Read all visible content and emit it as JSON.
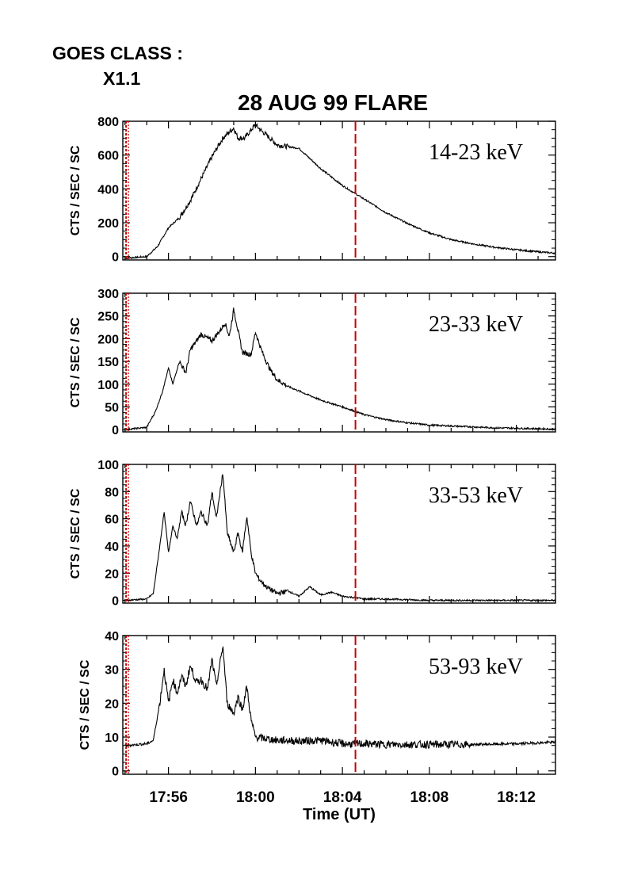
{
  "header": {
    "goes_label": "GOES CLASS :",
    "goes_class": "X1.1",
    "title": "28 AUG 99 FLARE"
  },
  "colors": {
    "axis": "#000000",
    "curve": "#000000",
    "marker": "#cc0000"
  },
  "chart_data": {
    "type": "line",
    "title": "28 AUG 99 FLARE",
    "xlabel": "Time (UT)",
    "x_ticks": [
      "17:56",
      "18:00",
      "18:04",
      "18:08",
      "18:12"
    ],
    "x_range_min": [
      -6.1,
      13.8
    ],
    "x_tick_positions_min": [
      -4,
      0,
      4,
      8,
      12
    ],
    "markers_min": [
      -5.95,
      4.6
    ],
    "panels": [
      {
        "name": "14-23 keV",
        "ylabel": "CTS / SEC / SC",
        "yticks": [
          0,
          200,
          400,
          600,
          800
        ],
        "ylim": [
          -20,
          800
        ],
        "x_min": [
          -6,
          -5,
          -4.5,
          -4,
          -3.5,
          -3,
          -2.5,
          -2,
          -1.5,
          -1,
          -0.8,
          -0.5,
          0,
          0.3,
          0.5,
          1,
          1.5,
          2,
          2.5,
          3,
          3.5,
          4,
          4.5,
          5,
          6,
          7,
          8,
          9,
          10,
          11,
          12,
          13,
          13.8
        ],
        "values": [
          -10,
          0,
          60,
          170,
          230,
          330,
          460,
          590,
          700,
          760,
          700,
          700,
          780,
          740,
          720,
          660,
          650,
          640,
          580,
          520,
          470,
          420,
          380,
          340,
          260,
          195,
          140,
          100,
          75,
          55,
          40,
          28,
          20
        ]
      },
      {
        "name": "23-33 keV",
        "ylabel": "CTS / SEC / SC",
        "yticks": [
          0,
          50,
          100,
          150,
          200,
          250,
          300
        ],
        "ylim": [
          -5,
          300
        ],
        "x_min": [
          -6,
          -5,
          -4.6,
          -4.3,
          -4,
          -3.8,
          -3.5,
          -3.2,
          -3,
          -2.5,
          -2,
          -1.6,
          -1.4,
          -1.2,
          -1,
          -0.6,
          -0.2,
          0,
          0.2,
          0.4,
          0.7,
          1,
          1.5,
          2,
          2.5,
          3,
          4,
          4.6,
          5,
          6,
          7,
          8,
          9,
          10,
          11,
          12,
          13,
          13.8
        ],
        "values": [
          0,
          5,
          40,
          80,
          135,
          100,
          150,
          125,
          175,
          210,
          195,
          220,
          235,
          205,
          265,
          170,
          165,
          215,
          185,
          160,
          130,
          110,
          95,
          85,
          75,
          65,
          50,
          40,
          33,
          22,
          15,
          10,
          8,
          6,
          4,
          3,
          2,
          1
        ]
      },
      {
        "name": "33-53 keV",
        "ylabel": "CTS / SEC / SC",
        "yticks": [
          0,
          20,
          40,
          60,
          80,
          100
        ],
        "ylim": [
          -2,
          100
        ],
        "x_min": [
          -6,
          -5,
          -4.7,
          -4.4,
          -4.2,
          -4,
          -3.8,
          -3.6,
          -3.4,
          -3.2,
          -3,
          -2.7,
          -2.5,
          -2.2,
          -2,
          -1.8,
          -1.5,
          -1.3,
          -1,
          -0.8,
          -0.6,
          -0.4,
          -0.2,
          0,
          0.2,
          0.5,
          1,
          1.5,
          2,
          2.5,
          3,
          3.5,
          4,
          4.6,
          5,
          6,
          8,
          10,
          12,
          13.8
        ],
        "values": [
          0,
          1,
          5,
          40,
          65,
          35,
          55,
          45,
          65,
          55,
          73,
          55,
          65,
          55,
          80,
          60,
          94,
          50,
          35,
          50,
          35,
          62,
          35,
          20,
          15,
          10,
          5,
          7,
          3,
          10,
          4,
          6,
          3,
          2,
          1,
          1,
          0,
          0,
          0,
          0
        ]
      },
      {
        "name": "53-93 keV",
        "ylabel": "CTS / SEC / SC",
        "yticks": [
          0,
          10,
          20,
          30,
          40
        ],
        "ylim": [
          -1,
          40
        ],
        "x_min": [
          -6,
          -5,
          -4.7,
          -4.4,
          -4.2,
          -4,
          -3.8,
          -3.6,
          -3.4,
          -3.2,
          -3,
          -2.7,
          -2.5,
          -2.2,
          -2,
          -1.8,
          -1.5,
          -1.3,
          -1,
          -0.8,
          -0.6,
          -0.4,
          -0.2,
          0,
          0.5,
          1,
          1.5,
          2,
          3,
          4,
          5,
          6,
          8,
          10,
          12,
          13.8
        ],
        "values": [
          7.5,
          8,
          9,
          20,
          30,
          20,
          27,
          23,
          28,
          25,
          31,
          26,
          27,
          24,
          33,
          25,
          37,
          20,
          17,
          22,
          18,
          25,
          15,
          10,
          9.5,
          9,
          9,
          8.8,
          9,
          8,
          8,
          7.8,
          7.8,
          7.8,
          8,
          8.5
        ]
      }
    ]
  }
}
